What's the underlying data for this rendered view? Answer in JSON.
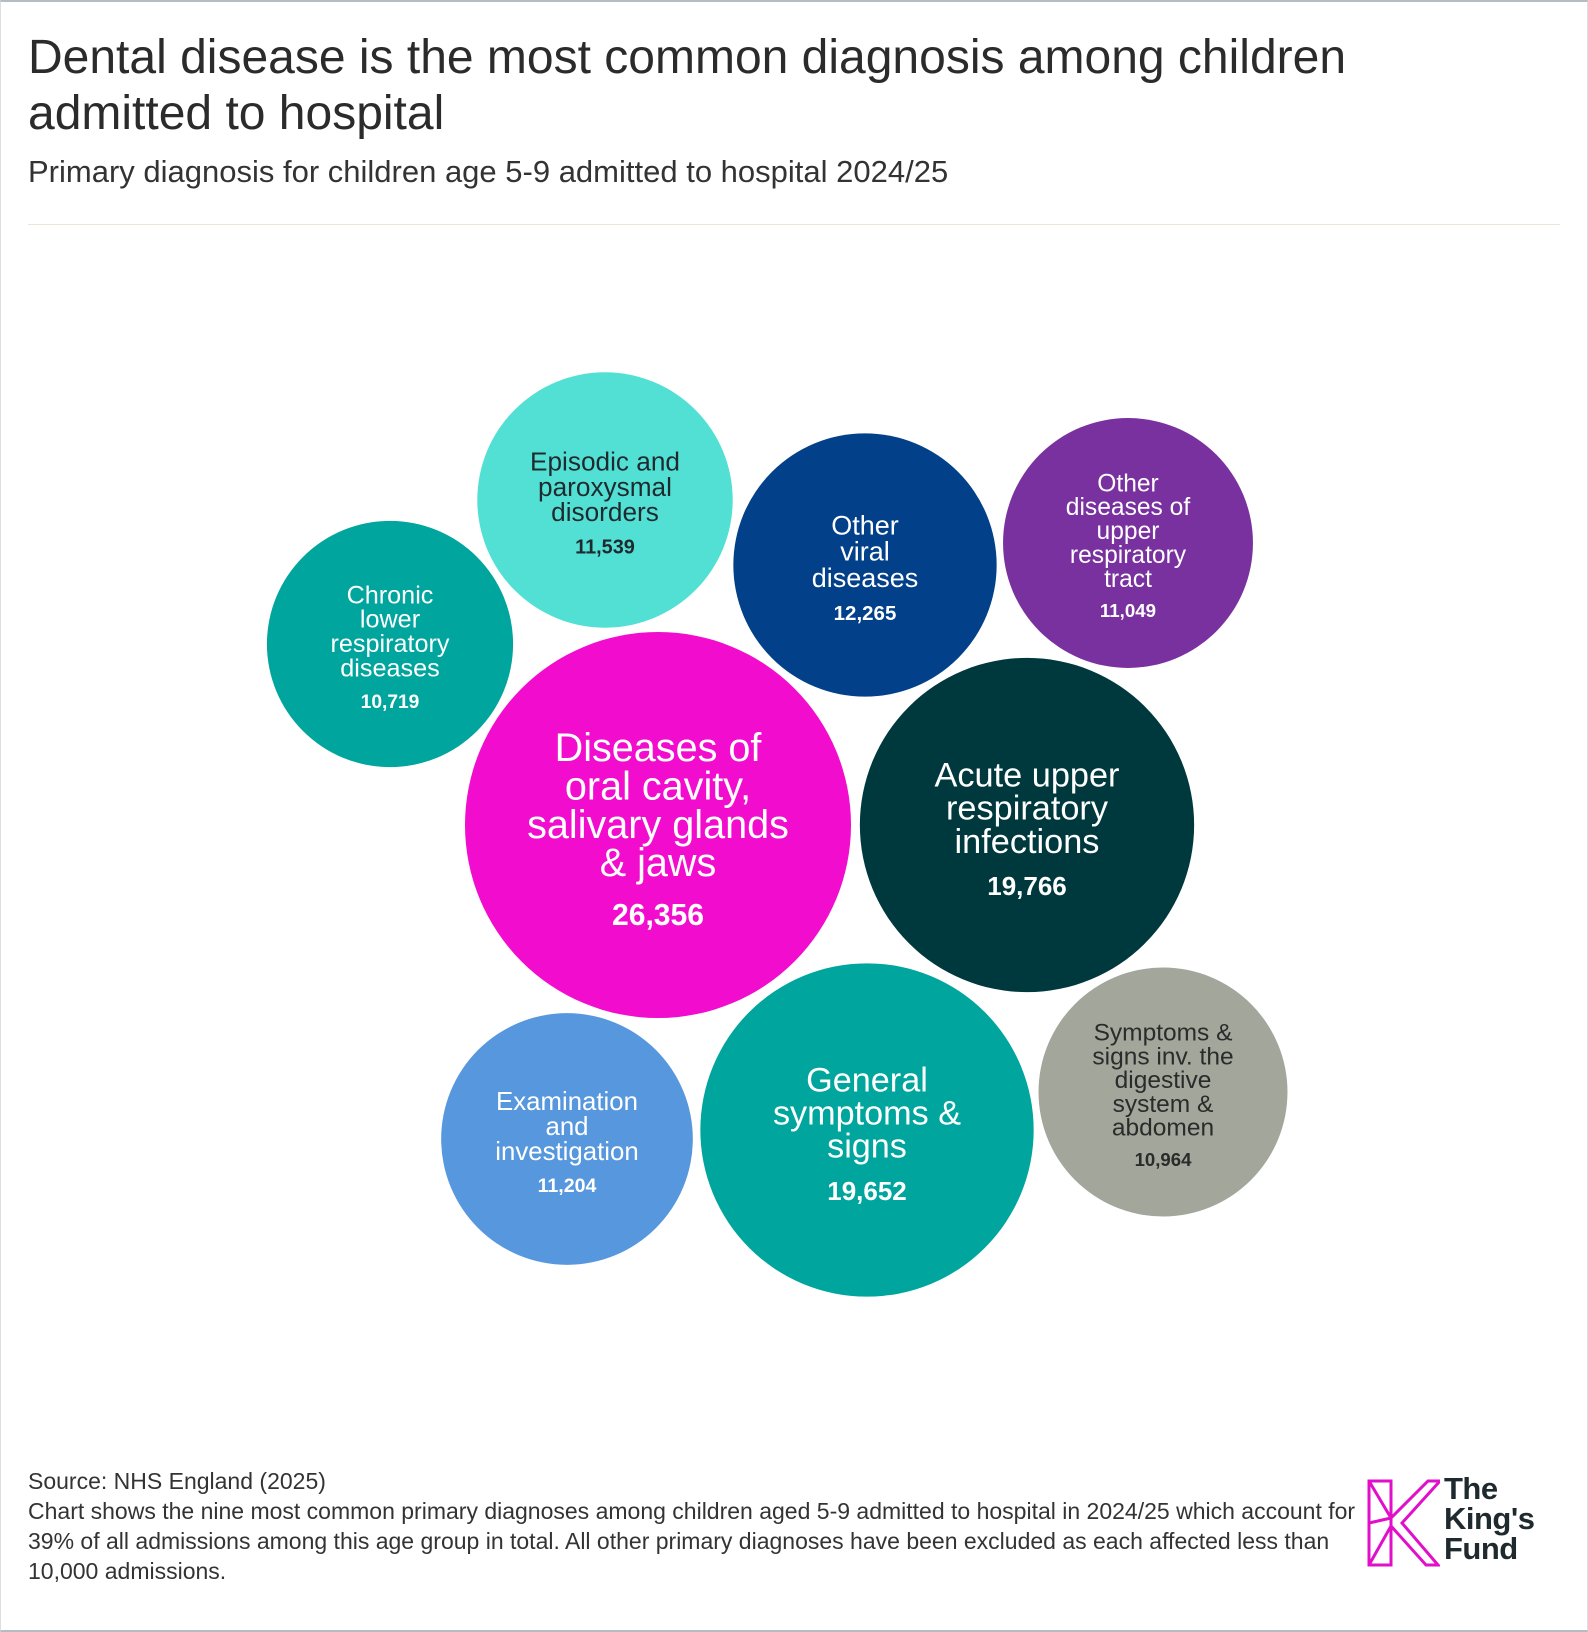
{
  "title": "Dental disease is the most common diagnosis among children admitted to hospital",
  "subtitle": "Primary diagnosis for children age 5-9 admitted to hospital 2024/25",
  "footer": {
    "source": "Source: NHS England (2025)",
    "note": "Chart shows the nine most common primary diagnoses among children aged 5-9 admitted to hospital in 2024/25 which account for 39% of all admissions among this age group in total. All other primary diagnoses have been excluded as each affected less than 10,000 admissions."
  },
  "logo": {
    "text_lines": [
      "The",
      "King's",
      "Fund"
    ],
    "accent": "#e10fc9"
  },
  "chart_data": {
    "type": "bubble",
    "title": "",
    "value_label_format": "thousands-comma",
    "series": [
      {
        "name": "Diseases of oral cavity, salivary glands & jaws",
        "label_lines": [
          "Diseases of",
          "oral cavity,",
          "salivary glands",
          "& jaws"
        ],
        "value": 26356,
        "value_text": "26,356",
        "color": "#f20cce",
        "text_color": "#ffffff"
      },
      {
        "name": "Acute upper respiratory infections",
        "label_lines": [
          "Acute upper",
          "respiratory",
          "infections"
        ],
        "value": 19766,
        "value_text": "19,766",
        "color": "#00393d",
        "text_color": "#ffffff"
      },
      {
        "name": "General symptoms & signs",
        "label_lines": [
          "General",
          "symptoms &",
          "signs"
        ],
        "value": 19652,
        "value_text": "19,652",
        "color": "#00a69d",
        "text_color": "#ffffff"
      },
      {
        "name": "Other viral diseases",
        "label_lines": [
          "Other",
          "viral",
          "diseases"
        ],
        "value": 12265,
        "value_text": "12,265",
        "color": "#02408a",
        "text_color": "#ffffff"
      },
      {
        "name": "Episodic and paroxysmal disorders",
        "label_lines": [
          "Episodic and",
          "paroxysmal",
          "disorders"
        ],
        "value": 11539,
        "value_text": "11,539",
        "color": "#52e0d4",
        "text_color": "#1f2a2f"
      },
      {
        "name": "Examination and investigation",
        "label_lines": [
          "Examination",
          "and",
          "investigation"
        ],
        "value": 11204,
        "value_text": "11,204",
        "color": "#5797dd",
        "text_color": "#ffffff"
      },
      {
        "name": "Other diseases of upper respiratory tract",
        "label_lines": [
          "Other",
          "diseases of",
          "upper",
          "respiratory",
          "tract"
        ],
        "value": 11049,
        "value_text": "11,049",
        "color": "#79319f",
        "text_color": "#ffffff"
      },
      {
        "name": "Symptoms & signs inv. the digestive system & abdomen",
        "label_lines": [
          "Symptoms &",
          "signs inv. the",
          "digestive",
          "system &",
          "abdomen"
        ],
        "value": 10964,
        "value_text": "10,964",
        "color": "#a2a69b",
        "text_color": "#2b2b2b"
      },
      {
        "name": "Chronic lower respiratory diseases",
        "label_lines": [
          "Chronic",
          "lower",
          "respiratory",
          "diseases"
        ],
        "value": 10719,
        "value_text": "10,719",
        "color": "#00a69d",
        "text_color": "#ffffff"
      }
    ]
  }
}
